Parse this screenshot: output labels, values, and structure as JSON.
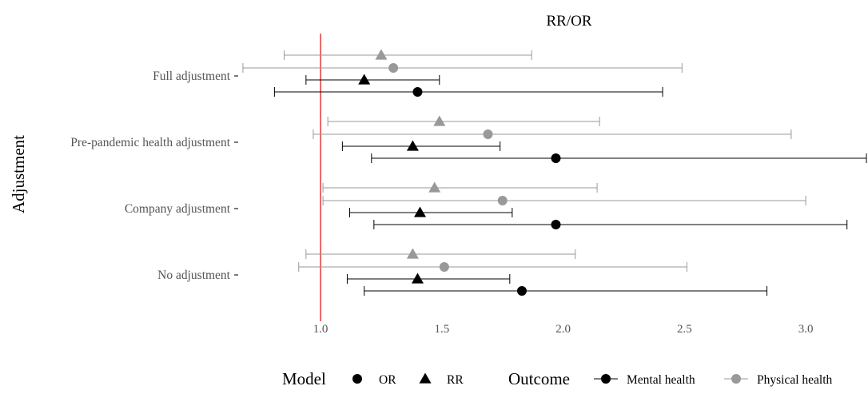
{
  "chart_data": {
    "type": "forest",
    "title": "RR/OR",
    "ylabel": "Adjustment",
    "xlabel": "",
    "xlim": [
      0.7,
      3.25
    ],
    "x_ticks": [
      1.0,
      1.5,
      2.0,
      2.5,
      3.0
    ],
    "x_tick_labels": [
      "1.0",
      "1.5",
      "2.0",
      "2.5",
      "3.0"
    ],
    "reference_line": 1.0,
    "reference_color": "#e31a1c",
    "categories": [
      "Full adjustment",
      "Pre-pandemic health adjustment",
      "Company adjustment",
      "No adjustment"
    ],
    "series": [
      {
        "outcome": "Physical health",
        "model": "RR",
        "color": "#999999",
        "shape": "triangle",
        "points": [
          {
            "estimate": 1.25,
            "lower": 0.85,
            "upper": 1.87
          },
          {
            "estimate": 1.49,
            "lower": 1.03,
            "upper": 2.15
          },
          {
            "estimate": 1.47,
            "lower": 1.01,
            "upper": 2.14
          },
          {
            "estimate": 1.38,
            "lower": 0.94,
            "upper": 2.05
          }
        ]
      },
      {
        "outcome": "Physical health",
        "model": "OR",
        "color": "#999999",
        "shape": "circle",
        "points": [
          {
            "estimate": 1.3,
            "lower": 0.68,
            "upper": 2.49
          },
          {
            "estimate": 1.69,
            "lower": 0.97,
            "upper": 2.94
          },
          {
            "estimate": 1.75,
            "lower": 1.01,
            "upper": 3.0
          },
          {
            "estimate": 1.51,
            "lower": 0.91,
            "upper": 2.51
          }
        ]
      },
      {
        "outcome": "Mental health",
        "model": "RR",
        "color": "#000000",
        "shape": "triangle",
        "points": [
          {
            "estimate": 1.18,
            "lower": 0.94,
            "upper": 1.49
          },
          {
            "estimate": 1.38,
            "lower": 1.09,
            "upper": 1.74
          },
          {
            "estimate": 1.41,
            "lower": 1.12,
            "upper": 1.79
          },
          {
            "estimate": 1.4,
            "lower": 1.11,
            "upper": 1.78
          }
        ]
      },
      {
        "outcome": "Mental health",
        "model": "OR",
        "color": "#000000",
        "shape": "circle",
        "points": [
          {
            "estimate": 1.4,
            "lower": 0.81,
            "upper": 2.41
          },
          {
            "estimate": 1.97,
            "lower": 1.21,
            "upper": 3.25
          },
          {
            "estimate": 1.97,
            "lower": 1.22,
            "upper": 3.17
          },
          {
            "estimate": 1.83,
            "lower": 1.18,
            "upper": 2.84
          }
        ]
      }
    ],
    "legend": {
      "position": "bottom",
      "model_title": "Model",
      "model_items": [
        {
          "label": "OR",
          "shape": "circle"
        },
        {
          "label": "RR",
          "shape": "triangle"
        }
      ],
      "outcome_title": "Outcome",
      "outcome_items": [
        {
          "label": "Mental health",
          "color": "#000000"
        },
        {
          "label": "Physical health",
          "color": "#999999"
        }
      ]
    },
    "grid": false
  }
}
